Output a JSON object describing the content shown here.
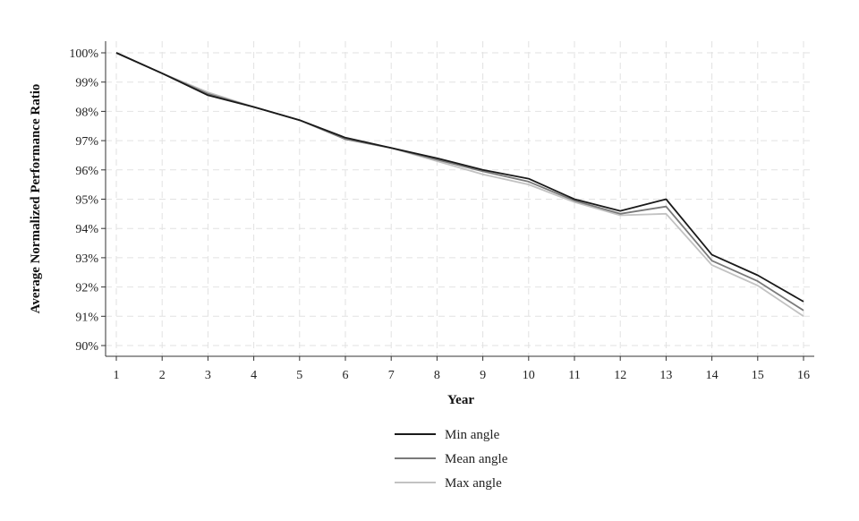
{
  "chart_data": {
    "type": "line",
    "title": "",
    "xlabel": "Year",
    "ylabel": "Average Normalized Performance Ratio",
    "x": [
      1,
      2,
      3,
      4,
      5,
      6,
      7,
      8,
      9,
      10,
      11,
      12,
      13,
      14,
      15,
      16
    ],
    "x_tick_labels": [
      "1",
      "2",
      "3",
      "4",
      "5",
      "6",
      "7",
      "8",
      "9",
      "10",
      "11",
      "12",
      "13",
      "14",
      "15",
      "16"
    ],
    "y_tick_values": [
      90,
      91,
      92,
      93,
      94,
      95,
      96,
      97,
      98,
      99,
      100
    ],
    "y_tick_labels": [
      "90%",
      "91%",
      "92%",
      "93%",
      "94%",
      "95%",
      "96%",
      "97%",
      "98%",
      "99%",
      "100%"
    ],
    "xlim": [
      1,
      16
    ],
    "ylim": [
      90,
      100
    ],
    "grid": true,
    "legend_position": "bottom",
    "series": [
      {
        "name": "Min angle",
        "color": "#1a1a1a",
        "values": [
          100,
          99.3,
          98.55,
          98.15,
          97.7,
          97.1,
          96.75,
          96.4,
          96.0,
          95.7,
          95.0,
          94.6,
          95.0,
          93.1,
          92.4,
          91.5
        ]
      },
      {
        "name": "Mean angle",
        "color": "#7a7a7a",
        "values": [
          100,
          99.3,
          98.6,
          98.15,
          97.7,
          97.05,
          96.75,
          96.35,
          95.95,
          95.6,
          94.95,
          94.5,
          94.75,
          92.9,
          92.2,
          91.2
        ]
      },
      {
        "name": "Max angle",
        "color": "#c2c2c2",
        "values": [
          100,
          99.3,
          98.65,
          98.15,
          97.7,
          97.05,
          96.75,
          96.3,
          95.85,
          95.5,
          94.9,
          94.45,
          94.5,
          92.75,
          92.05,
          91.0
        ]
      }
    ]
  }
}
